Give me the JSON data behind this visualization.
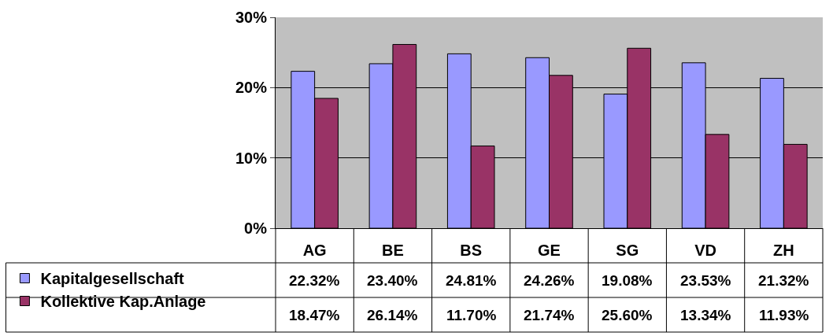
{
  "chart_data": {
    "type": "bar",
    "categories": [
      "AG",
      "BE",
      "BS",
      "GE",
      "SG",
      "VD",
      "ZH"
    ],
    "series": [
      {
        "name": "Kapitalgesellschaft",
        "color": "#9999ff",
        "values": [
          22.32,
          23.4,
          24.81,
          24.26,
          19.08,
          23.53,
          21.32
        ],
        "value_labels": [
          "22.32%",
          "23.40%",
          "24.81%",
          "24.26%",
          "19.08%",
          "23.53%",
          "21.32%"
        ]
      },
      {
        "name": "Kollektive Kap.Anlage",
        "color": "#993366",
        "values": [
          18.47,
          26.14,
          11.7,
          21.74,
          25.6,
          13.34,
          11.93
        ],
        "value_labels": [
          "18.47%",
          "26.14%",
          "11.70%",
          "21.74%",
          "25.60%",
          "13.34%",
          "11.93%"
        ]
      }
    ],
    "ylim": [
      0,
      30
    ],
    "yticks": [
      {
        "value": 0,
        "label": "0%"
      },
      {
        "value": 10,
        "label": "10%"
      },
      {
        "value": 20,
        "label": "20%"
      },
      {
        "value": 30,
        "label": "30%"
      }
    ],
    "grid": "y",
    "legend": "bottom left"
  }
}
